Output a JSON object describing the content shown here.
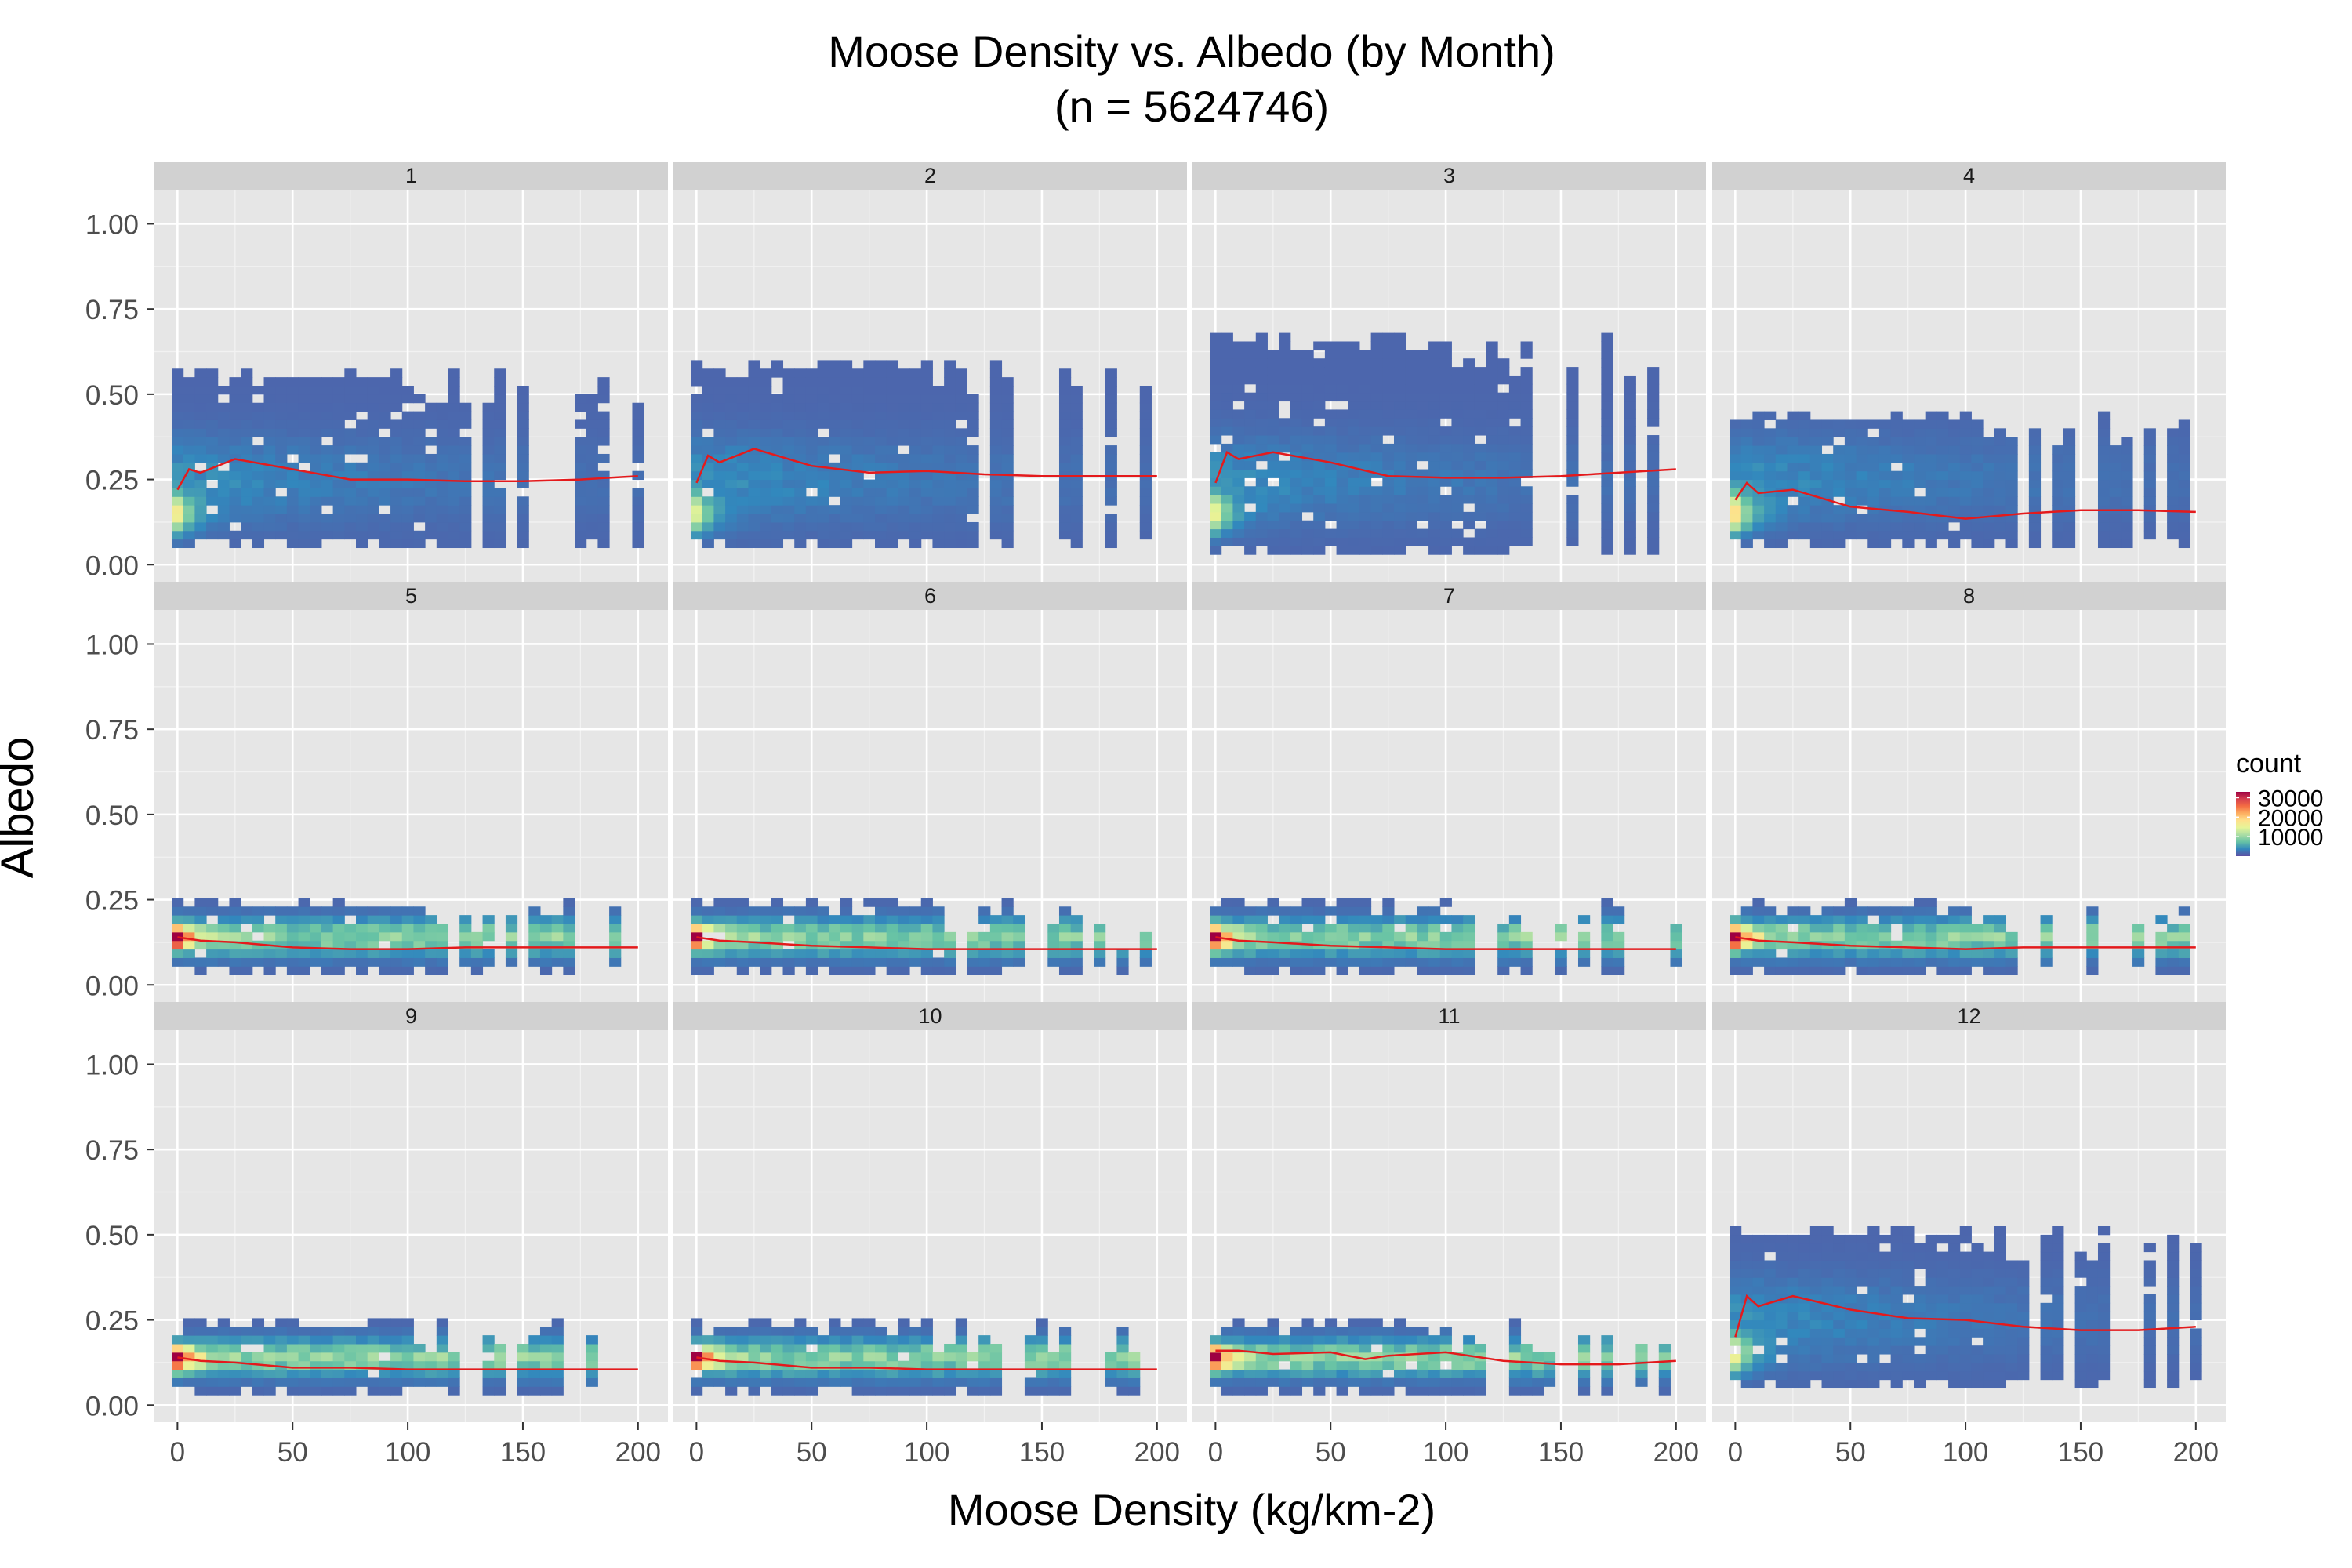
{
  "chart_data": {
    "type": "heatmap",
    "title": "Moose Density vs. Albedo (by Month)",
    "subtitle": "(n = 5624746)",
    "xlabel": "Moose Density (kg/km-2)",
    "ylabel": "Albedo",
    "xlim": [
      -10,
      213
    ],
    "ylim": [
      -0.05,
      1.1
    ],
    "x_ticks": [
      0,
      50,
      100,
      150,
      200
    ],
    "y_ticks": [
      0.0,
      0.25,
      0.5,
      0.75,
      1.0
    ],
    "x_tick_labels": [
      "0",
      "50",
      "100",
      "150",
      "200"
    ],
    "y_tick_labels": [
      "0.00",
      "0.25",
      "0.50",
      "0.75",
      "1.00"
    ],
    "grid": true,
    "legend": {
      "title": "count",
      "labels": [
        "30000",
        "20000",
        "10000"
      ],
      "values": [
        30000,
        20000,
        10000
      ],
      "range": [
        0,
        33000
      ],
      "position": "right",
      "colors": [
        "#5E4FA2",
        "#3288BD",
        "#66C2A5",
        "#ABDDA4",
        "#E6F598",
        "#FEE08B",
        "#FDAE61",
        "#F46D43",
        "#D53E4F",
        "#9E0142"
      ]
    },
    "trend_color": "#e41a1c",
    "panel_bg": "#e6e6e6",
    "strip_bg": "#d1d1d1",
    "panels": [
      {
        "month": "1",
        "albedo_min": 0.05,
        "albedo_max": 0.57,
        "peak_albedo": 0.15,
        "peak_count": 14000,
        "trend": [
          [
            0,
            0.22
          ],
          [
            5,
            0.28
          ],
          [
            10,
            0.27
          ],
          [
            25,
            0.31
          ],
          [
            50,
            0.28
          ],
          [
            75,
            0.25
          ],
          [
            100,
            0.25
          ],
          [
            125,
            0.245
          ],
          [
            150,
            0.245
          ],
          [
            175,
            0.25
          ],
          [
            200,
            0.26
          ]
        ]
      },
      {
        "month": "2",
        "albedo_min": 0.05,
        "albedo_max": 0.6,
        "peak_albedo": 0.15,
        "peak_count": 12000,
        "trend": [
          [
            0,
            0.24
          ],
          [
            5,
            0.32
          ],
          [
            10,
            0.3
          ],
          [
            25,
            0.34
          ],
          [
            50,
            0.29
          ],
          [
            75,
            0.27
          ],
          [
            100,
            0.275
          ],
          [
            125,
            0.265
          ],
          [
            150,
            0.26
          ],
          [
            175,
            0.26
          ],
          [
            200,
            0.26
          ]
        ]
      },
      {
        "month": "3",
        "albedo_min": 0.03,
        "albedo_max": 0.67,
        "peak_albedo": 0.15,
        "peak_count": 13000,
        "trend": [
          [
            0,
            0.24
          ],
          [
            5,
            0.33
          ],
          [
            10,
            0.31
          ],
          [
            25,
            0.33
          ],
          [
            50,
            0.3
          ],
          [
            75,
            0.26
          ],
          [
            100,
            0.255
          ],
          [
            125,
            0.255
          ],
          [
            150,
            0.26
          ],
          [
            175,
            0.27
          ],
          [
            200,
            0.28
          ]
        ]
      },
      {
        "month": "4",
        "albedo_min": 0.05,
        "albedo_max": 0.45,
        "peak_albedo": 0.15,
        "peak_count": 16000,
        "trend": [
          [
            0,
            0.19
          ],
          [
            5,
            0.24
          ],
          [
            10,
            0.21
          ],
          [
            25,
            0.22
          ],
          [
            50,
            0.17
          ],
          [
            75,
            0.155
          ],
          [
            100,
            0.135
          ],
          [
            125,
            0.15
          ],
          [
            150,
            0.16
          ],
          [
            175,
            0.16
          ],
          [
            200,
            0.155
          ]
        ]
      },
      {
        "month": "5",
        "albedo_min": 0.03,
        "albedo_max": 0.25,
        "peak_albedo": 0.14,
        "peak_count": 30000,
        "trend": [
          [
            0,
            0.14
          ],
          [
            10,
            0.13
          ],
          [
            25,
            0.125
          ],
          [
            50,
            0.11
          ],
          [
            75,
            0.105
          ],
          [
            100,
            0.105
          ],
          [
            125,
            0.11
          ],
          [
            150,
            0.11
          ],
          [
            175,
            0.11
          ],
          [
            200,
            0.11
          ]
        ]
      },
      {
        "month": "6",
        "albedo_min": 0.03,
        "albedo_max": 0.25,
        "peak_albedo": 0.14,
        "peak_count": 30000,
        "trend": [
          [
            0,
            0.14
          ],
          [
            10,
            0.13
          ],
          [
            25,
            0.125
          ],
          [
            50,
            0.115
          ],
          [
            75,
            0.11
          ],
          [
            100,
            0.105
          ],
          [
            125,
            0.105
          ],
          [
            150,
            0.105
          ],
          [
            175,
            0.105
          ],
          [
            200,
            0.105
          ]
        ]
      },
      {
        "month": "7",
        "albedo_min": 0.03,
        "albedo_max": 0.25,
        "peak_albedo": 0.14,
        "peak_count": 30000,
        "trend": [
          [
            0,
            0.14
          ],
          [
            10,
            0.13
          ],
          [
            25,
            0.125
          ],
          [
            50,
            0.115
          ],
          [
            75,
            0.11
          ],
          [
            100,
            0.105
          ],
          [
            125,
            0.105
          ],
          [
            150,
            0.105
          ],
          [
            175,
            0.105
          ],
          [
            200,
            0.105
          ]
        ]
      },
      {
        "month": "8",
        "albedo_min": 0.03,
        "albedo_max": 0.25,
        "peak_albedo": 0.14,
        "peak_count": 30000,
        "trend": [
          [
            0,
            0.14
          ],
          [
            10,
            0.13
          ],
          [
            25,
            0.125
          ],
          [
            50,
            0.115
          ],
          [
            75,
            0.11
          ],
          [
            100,
            0.105
          ],
          [
            125,
            0.11
          ],
          [
            150,
            0.11
          ],
          [
            175,
            0.11
          ],
          [
            200,
            0.11
          ]
        ]
      },
      {
        "month": "9",
        "albedo_min": 0.03,
        "albedo_max": 0.25,
        "peak_albedo": 0.14,
        "peak_count": 30000,
        "trend": [
          [
            0,
            0.14
          ],
          [
            10,
            0.13
          ],
          [
            25,
            0.125
          ],
          [
            50,
            0.11
          ],
          [
            75,
            0.11
          ],
          [
            100,
            0.105
          ],
          [
            125,
            0.105
          ],
          [
            150,
            0.105
          ],
          [
            175,
            0.105
          ],
          [
            200,
            0.105
          ]
        ]
      },
      {
        "month": "10",
        "albedo_min": 0.03,
        "albedo_max": 0.25,
        "peak_albedo": 0.14,
        "peak_count": 30000,
        "trend": [
          [
            0,
            0.14
          ],
          [
            10,
            0.13
          ],
          [
            25,
            0.125
          ],
          [
            50,
            0.11
          ],
          [
            75,
            0.11
          ],
          [
            100,
            0.105
          ],
          [
            125,
            0.105
          ],
          [
            150,
            0.105
          ],
          [
            175,
            0.105
          ],
          [
            200,
            0.105
          ]
        ]
      },
      {
        "month": "11",
        "albedo_min": 0.03,
        "albedo_max": 0.25,
        "peak_albedo": 0.14,
        "peak_count": 28000,
        "trend": [
          [
            0,
            0.16
          ],
          [
            10,
            0.16
          ],
          [
            25,
            0.15
          ],
          [
            50,
            0.155
          ],
          [
            65,
            0.135
          ],
          [
            75,
            0.145
          ],
          [
            100,
            0.155
          ],
          [
            125,
            0.13
          ],
          [
            150,
            0.12
          ],
          [
            175,
            0.12
          ],
          [
            200,
            0.13
          ]
        ]
      },
      {
        "month": "12",
        "albedo_min": 0.05,
        "albedo_max": 0.52,
        "peak_albedo": 0.15,
        "peak_count": 14000,
        "trend": [
          [
            0,
            0.2
          ],
          [
            5,
            0.32
          ],
          [
            10,
            0.29
          ],
          [
            25,
            0.32
          ],
          [
            50,
            0.28
          ],
          [
            75,
            0.255
          ],
          [
            100,
            0.25
          ],
          [
            125,
            0.23
          ],
          [
            150,
            0.22
          ],
          [
            175,
            0.22
          ],
          [
            200,
            0.23
          ]
        ]
      }
    ]
  }
}
